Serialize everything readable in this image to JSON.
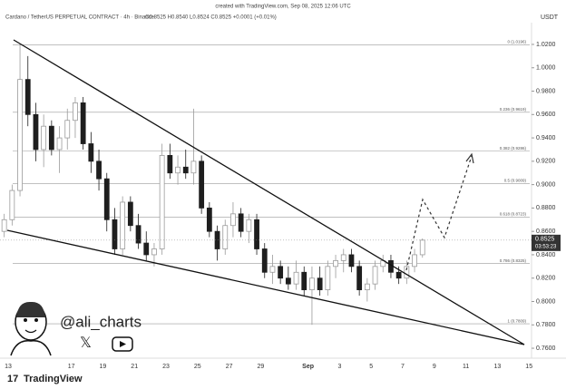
{
  "chart_data": {
    "type": "candlestick",
    "watermark": "created with TradingView.com, Sep 08, 2025 12:06 UTC",
    "symbol": "Cardano / TetherUS PERPETUAL CONTRACT · 4h · Binance",
    "ohlc_legend": "O0.8525 H0.8540 L0.8524 C0.8525 +0.0001 (+0.01%)",
    "currency": "USDT",
    "author": "@ali_charts",
    "brand": "TradingView",
    "up_color": "#9a9a9a",
    "down_color": "#1e1e1e",
    "grid": false,
    "ylim": [
      0.7515,
      1.0386
    ],
    "yticks": [
      {
        "value": 0.76,
        "label": "0.7600"
      },
      {
        "value": 0.78,
        "label": "0.7800"
      },
      {
        "value": 0.8,
        "label": "0.8000"
      },
      {
        "value": 0.82,
        "label": "0.8200"
      },
      {
        "value": 0.84,
        "label": "0.8400"
      },
      {
        "value": 0.86,
        "label": "0.8600"
      },
      {
        "value": 0.88,
        "label": "0.8800"
      },
      {
        "value": 0.9,
        "label": "0.9000"
      },
      {
        "value": 0.92,
        "label": "0.9200"
      },
      {
        "value": 0.94,
        "label": "0.9400"
      },
      {
        "value": 0.96,
        "label": "0.9600"
      },
      {
        "value": 0.98,
        "label": "0.9800"
      },
      {
        "value": 1.0,
        "label": "1.0000"
      },
      {
        "value": 1.02,
        "label": "1.0200"
      }
    ],
    "xticks": [
      "13",
      "17",
      "19",
      "21",
      "23",
      "25",
      "27",
      "29",
      "Sep",
      "3",
      "5",
      "7",
      "9",
      "11",
      "13",
      "15"
    ],
    "last_price": 0.8525,
    "countdown": "03:53:23",
    "fib_levels": [
      {
        "value": 1.0196,
        "label": "0 (1.0196)"
      },
      {
        "value": 0.9619,
        "label": "0.236 (0.9619)"
      },
      {
        "value": 0.9286,
        "label": "0.382 (0.9286)"
      },
      {
        "value": 0.9009,
        "label": "0.5 (0.9009)"
      },
      {
        "value": 0.8723,
        "label": "0.618 (0.8723)"
      },
      {
        "value": 0.8325,
        "label": "0.786 (0.8325)"
      },
      {
        "value": 0.7809,
        "label": "1 (0.7809)"
      }
    ],
    "candles": [
      {
        "open": 0.86,
        "high": 0.875,
        "low": 0.855,
        "close": 0.87
      },
      {
        "open": 0.87,
        "high": 0.9,
        "low": 0.865,
        "close": 0.895
      },
      {
        "open": 0.895,
        "high": 1.02,
        "low": 0.89,
        "close": 0.99
      },
      {
        "open": 0.99,
        "high": 1.01,
        "low": 0.95,
        "close": 0.96
      },
      {
        "open": 0.96,
        "high": 0.97,
        "low": 0.92,
        "close": 0.93
      },
      {
        "open": 0.93,
        "high": 0.96,
        "low": 0.915,
        "close": 0.95
      },
      {
        "open": 0.95,
        "high": 0.955,
        "low": 0.925,
        "close": 0.93
      },
      {
        "open": 0.93,
        "high": 0.95,
        "low": 0.91,
        "close": 0.94
      },
      {
        "open": 0.94,
        "high": 0.965,
        "low": 0.93,
        "close": 0.955
      },
      {
        "open": 0.955,
        "high": 0.975,
        "low": 0.94,
        "close": 0.97
      },
      {
        "open": 0.97,
        "high": 0.975,
        "low": 0.93,
        "close": 0.935
      },
      {
        "open": 0.935,
        "high": 0.945,
        "low": 0.91,
        "close": 0.92
      },
      {
        "open": 0.92,
        "high": 0.93,
        "low": 0.895,
        "close": 0.905
      },
      {
        "open": 0.905,
        "high": 0.91,
        "low": 0.86,
        "close": 0.87
      },
      {
        "open": 0.87,
        "high": 0.88,
        "low": 0.84,
        "close": 0.845
      },
      {
        "open": 0.845,
        "high": 0.89,
        "low": 0.84,
        "close": 0.885
      },
      {
        "open": 0.885,
        "high": 0.89,
        "low": 0.86,
        "close": 0.865
      },
      {
        "open": 0.865,
        "high": 0.875,
        "low": 0.845,
        "close": 0.85
      },
      {
        "open": 0.85,
        "high": 0.86,
        "low": 0.835,
        "close": 0.84
      },
      {
        "open": 0.84,
        "high": 0.85,
        "low": 0.83,
        "close": 0.845
      },
      {
        "open": 0.845,
        "high": 0.935,
        "low": 0.84,
        "close": 0.925
      },
      {
        "open": 0.925,
        "high": 0.935,
        "low": 0.905,
        "close": 0.91
      },
      {
        "open": 0.91,
        "high": 0.925,
        "low": 0.9,
        "close": 0.915
      },
      {
        "open": 0.915,
        "high": 0.93,
        "low": 0.905,
        "close": 0.91
      },
      {
        "open": 0.91,
        "high": 0.965,
        "low": 0.9,
        "close": 0.92
      },
      {
        "open": 0.92,
        "high": 0.925,
        "low": 0.875,
        "close": 0.88
      },
      {
        "open": 0.88,
        "high": 0.885,
        "low": 0.855,
        "close": 0.86
      },
      {
        "open": 0.86,
        "high": 0.865,
        "low": 0.835,
        "close": 0.845
      },
      {
        "open": 0.845,
        "high": 0.87,
        "low": 0.84,
        "close": 0.865
      },
      {
        "open": 0.865,
        "high": 0.885,
        "low": 0.855,
        "close": 0.875
      },
      {
        "open": 0.875,
        "high": 0.88,
        "low": 0.855,
        "close": 0.86
      },
      {
        "open": 0.86,
        "high": 0.875,
        "low": 0.85,
        "close": 0.87
      },
      {
        "open": 0.87,
        "high": 0.875,
        "low": 0.84,
        "close": 0.845
      },
      {
        "open": 0.845,
        "high": 0.85,
        "low": 0.82,
        "close": 0.825
      },
      {
        "open": 0.825,
        "high": 0.84,
        "low": 0.815,
        "close": 0.83
      },
      {
        "open": 0.83,
        "high": 0.835,
        "low": 0.815,
        "close": 0.82
      },
      {
        "open": 0.82,
        "high": 0.83,
        "low": 0.81,
        "close": 0.815
      },
      {
        "open": 0.815,
        "high": 0.835,
        "low": 0.81,
        "close": 0.825
      },
      {
        "open": 0.825,
        "high": 0.83,
        "low": 0.805,
        "close": 0.81
      },
      {
        "open": 0.81,
        "high": 0.83,
        "low": 0.78,
        "close": 0.82
      },
      {
        "open": 0.82,
        "high": 0.83,
        "low": 0.805,
        "close": 0.81
      },
      {
        "open": 0.81,
        "high": 0.835,
        "low": 0.805,
        "close": 0.83
      },
      {
        "open": 0.83,
        "high": 0.84,
        "low": 0.82,
        "close": 0.835
      },
      {
        "open": 0.835,
        "high": 0.845,
        "low": 0.825,
        "close": 0.84
      },
      {
        "open": 0.84,
        "high": 0.845,
        "low": 0.825,
        "close": 0.83
      },
      {
        "open": 0.83,
        "high": 0.835,
        "low": 0.805,
        "close": 0.81
      },
      {
        "open": 0.81,
        "high": 0.82,
        "low": 0.8,
        "close": 0.815
      },
      {
        "open": 0.815,
        "high": 0.835,
        "low": 0.81,
        "close": 0.83
      },
      {
        "open": 0.83,
        "high": 0.84,
        "low": 0.825,
        "close": 0.835
      },
      {
        "open": 0.835,
        "high": 0.84,
        "low": 0.82,
        "close": 0.825
      },
      {
        "open": 0.825,
        "high": 0.83,
        "low": 0.815,
        "close": 0.82
      },
      {
        "open": 0.82,
        "high": 0.835,
        "low": 0.815,
        "close": 0.83
      },
      {
        "open": 0.83,
        "high": 0.845,
        "low": 0.825,
        "close": 0.84
      },
      {
        "open": 0.84,
        "high": 0.854,
        "low": 0.8375,
        "close": 0.8525
      }
    ]
  }
}
